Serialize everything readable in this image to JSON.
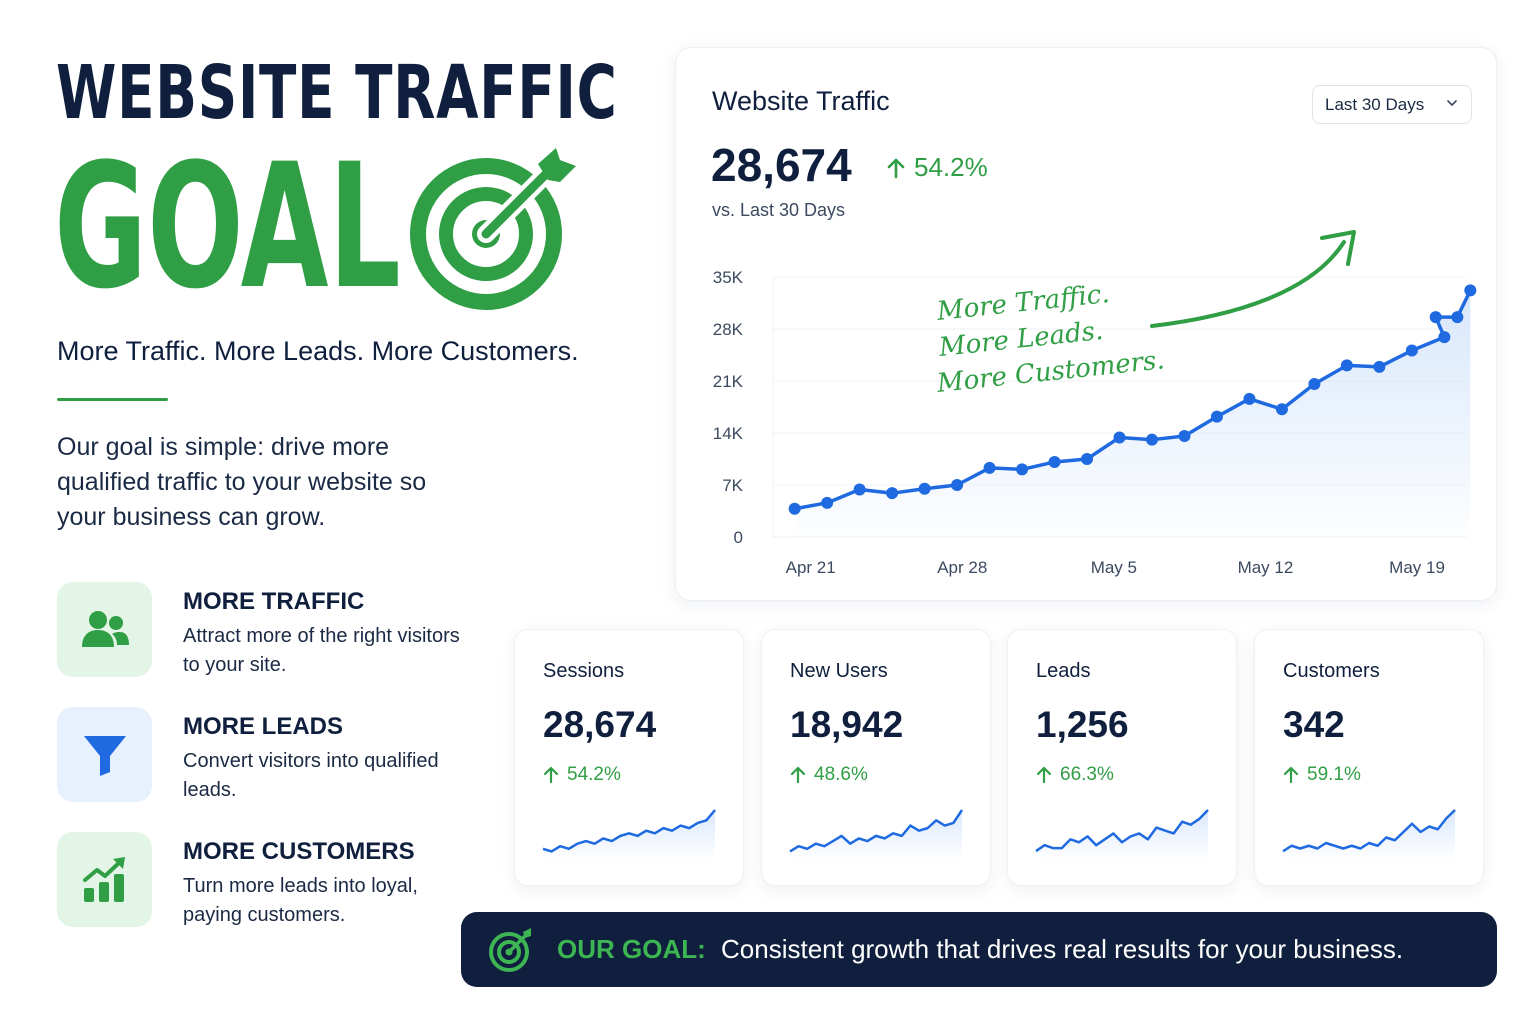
{
  "hero": {
    "title": "WEBSITE TRAFFIC",
    "goal_word": "GOAL",
    "tagline": "More Traffic. More Leads. More Customers.",
    "intro": "Our goal is simple: drive more qualified traffic to your website so your business can grow."
  },
  "features": [
    {
      "title": "MORE TRAFFIC",
      "text": "Attract more of the right visitors to your site.",
      "icon": "users-icon"
    },
    {
      "title": "MORE LEADS",
      "text": "Convert visitors into qualified leads.",
      "icon": "funnel-icon"
    },
    {
      "title": "MORE CUSTOMERS",
      "text": "Turn more leads into loyal, paying customers.",
      "icon": "growth-chart-icon"
    }
  ],
  "main_card": {
    "title": "Website Traffic",
    "range_selected": "Last 30 Days",
    "total": "28,674",
    "change": "54.2%",
    "comparison": "vs. Last 30 Days",
    "annotation": [
      "More Traffic.",
      "More Leads.",
      "More Customers."
    ]
  },
  "kpis": [
    {
      "label": "Sessions",
      "value": "28,674",
      "change": "54.2%"
    },
    {
      "label": "New Users",
      "value": "18,942",
      "change": "48.6%"
    },
    {
      "label": "Leads",
      "value": "1,256",
      "change": "66.3%"
    },
    {
      "label": "Customers",
      "value": "342",
      "change": "59.1%"
    }
  ],
  "banner": {
    "label": "OUR GOAL:",
    "text": "Consistent growth that drives real results for your business."
  },
  "colors": {
    "navy": "#0f1f3d",
    "green": "#2f9e44",
    "blue_line": "#1f6ae0",
    "area_fill": "#d6e6fb"
  },
  "chart_data": [
    {
      "type": "area",
      "title": "Website Traffic",
      "y_ticks": [
        "0",
        "7K",
        "14K",
        "21K",
        "28K",
        "35K"
      ],
      "ylim": [
        0,
        35000
      ],
      "x_tick_labels": [
        "Apr 21",
        "Apr 28",
        "May 5",
        "May 12",
        "May 19"
      ],
      "x_tick_days": [
        0,
        7,
        14,
        21,
        28
      ],
      "x_range_days": [
        -1,
        31
      ],
      "grid": true,
      "series": [
        {
          "x": [
            0,
            1.5,
            3,
            4.5,
            6,
            7.5,
            9,
            10.5,
            12,
            13.5,
            15,
            16.5,
            18,
            19.5,
            21,
            22.5,
            24,
            25.5,
            27,
            28.5,
            30
          ],
          "values": [
            3800,
            4600,
            6400,
            5900,
            6500,
            7000,
            9300,
            9100,
            10100,
            10500,
            13400,
            13100,
            13600,
            16200,
            18600,
            17200,
            20600,
            23100,
            22900,
            25100,
            26900
          ],
          "extra_x": [
            29.6,
            30.6,
            31.2
          ],
          "extra_values": [
            29600,
            29600,
            33200
          ]
        }
      ]
    },
    {
      "type": "line",
      "title": "Sessions",
      "values": [
        3,
        2,
        4,
        3,
        5,
        6,
        5,
        7,
        6,
        8,
        9,
        8,
        10,
        9,
        11,
        10,
        12,
        11,
        13,
        14,
        18
      ]
    },
    {
      "type": "line",
      "title": "New Users",
      "values": [
        3,
        5,
        4,
        6,
        5,
        7,
        9,
        6,
        8,
        7,
        9,
        8,
        10,
        9,
        13,
        11,
        12,
        15,
        13,
        14,
        19
      ]
    },
    {
      "type": "line",
      "title": "Leads",
      "values": [
        4,
        6,
        5,
        5,
        8,
        7,
        9,
        6,
        8,
        10,
        7,
        9,
        10,
        8,
        12,
        11,
        10,
        14,
        13,
        15,
        18
      ]
    },
    {
      "type": "line",
      "title": "Customers",
      "values": [
        3,
        5,
        4,
        5,
        4,
        6,
        5,
        4,
        5,
        4,
        6,
        5,
        8,
        7,
        10,
        13,
        10,
        12,
        11,
        15,
        18
      ]
    }
  ]
}
